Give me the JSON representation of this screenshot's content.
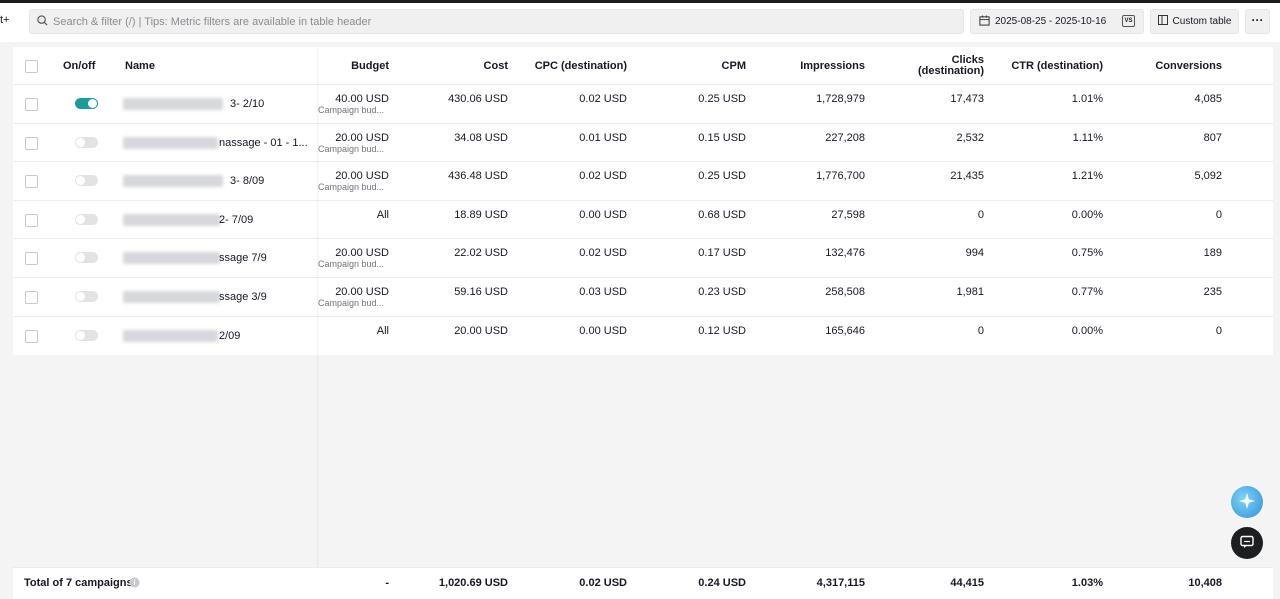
{
  "topbar": {
    "left_button": "t+",
    "search_placeholder": "Search & filter (/) | Tips: Metric filters are available in table header",
    "date_range": "2025-08-25 - 2025-10-16",
    "custom_table_label": "Custom table",
    "more_label": "···"
  },
  "table": {
    "headers": {
      "onoff": "On/off",
      "name": "Name",
      "budget": "Budget",
      "cost": "Cost",
      "cpc": "CPC (destination)",
      "cpm": "CPM",
      "impressions": "Impressions",
      "clicks_line1": "Clicks",
      "clicks_line2": "(destination)",
      "ctr": "CTR (destination)",
      "conversions": "Conversions"
    },
    "rows": [
      {
        "on": true,
        "name_tail": "3- 2/10",
        "budget": "40.00 USD",
        "budget_sub": "Campaign bud...",
        "cost": "430.06 USD",
        "cpc": "0.02 USD",
        "cpm": "0.25 USD",
        "impressions": "1,728,979",
        "clicks": "17,473",
        "ctr": "1.01%",
        "conversions": "4,085"
      },
      {
        "on": false,
        "name_tail": "nassage - 01 - 1...",
        "budget": "20.00 USD",
        "budget_sub": "Campaign bud...",
        "cost": "34.08 USD",
        "cpc": "0.01 USD",
        "cpm": "0.15 USD",
        "impressions": "227,208",
        "clicks": "2,532",
        "ctr": "1.11%",
        "conversions": "807"
      },
      {
        "on": false,
        "name_tail": "3- 8/09",
        "budget": "20.00 USD",
        "budget_sub": "Campaign bud...",
        "cost": "436.48 USD",
        "cpc": "0.02 USD",
        "cpm": "0.25 USD",
        "impressions": "1,776,700",
        "clicks": "21,435",
        "ctr": "1.21%",
        "conversions": "5,092"
      },
      {
        "on": false,
        "name_tail": "2- 7/09",
        "budget": "All",
        "budget_sub": "",
        "cost": "18.89 USD",
        "cpc": "0.00 USD",
        "cpm": "0.68 USD",
        "impressions": "27,598",
        "clicks": "0",
        "ctr": "0.00%",
        "conversions": "0"
      },
      {
        "on": false,
        "name_tail": "ssage 7/9",
        "budget": "20.00 USD",
        "budget_sub": "Campaign bud...",
        "cost": "22.02 USD",
        "cpc": "0.02 USD",
        "cpm": "0.17 USD",
        "impressions": "132,476",
        "clicks": "994",
        "ctr": "0.75%",
        "conversions": "189"
      },
      {
        "on": false,
        "name_tail": "ssage 3/9",
        "budget": "20.00 USD",
        "budget_sub": "Campaign bud...",
        "cost": "59.16 USD",
        "cpc": "0.03 USD",
        "cpm": "0.23 USD",
        "impressions": "258,508",
        "clicks": "1,981",
        "ctr": "0.77%",
        "conversions": "235"
      },
      {
        "on": false,
        "name_tail": "2/09",
        "budget": "All",
        "budget_sub": "",
        "cost": "20.00 USD",
        "cpc": "0.00 USD",
        "cpm": "0.12 USD",
        "impressions": "165,646",
        "clicks": "0",
        "ctr": "0.00%",
        "conversions": "0"
      }
    ]
  },
  "footer": {
    "total_label": "Total of 7 campaigns",
    "budget": "-",
    "cost": "1,020.69 USD",
    "cpc": "0.02 USD",
    "cpm": "0.24 USD",
    "impressions": "4,317,115",
    "clicks": "44,415",
    "ctr": "1.03%",
    "conversions": "10,408"
  },
  "colors": {
    "toggle_on": "#1a9c9a",
    "assistant_fab": "#2e8fd6",
    "feedback_fab": "#1d1e22"
  }
}
